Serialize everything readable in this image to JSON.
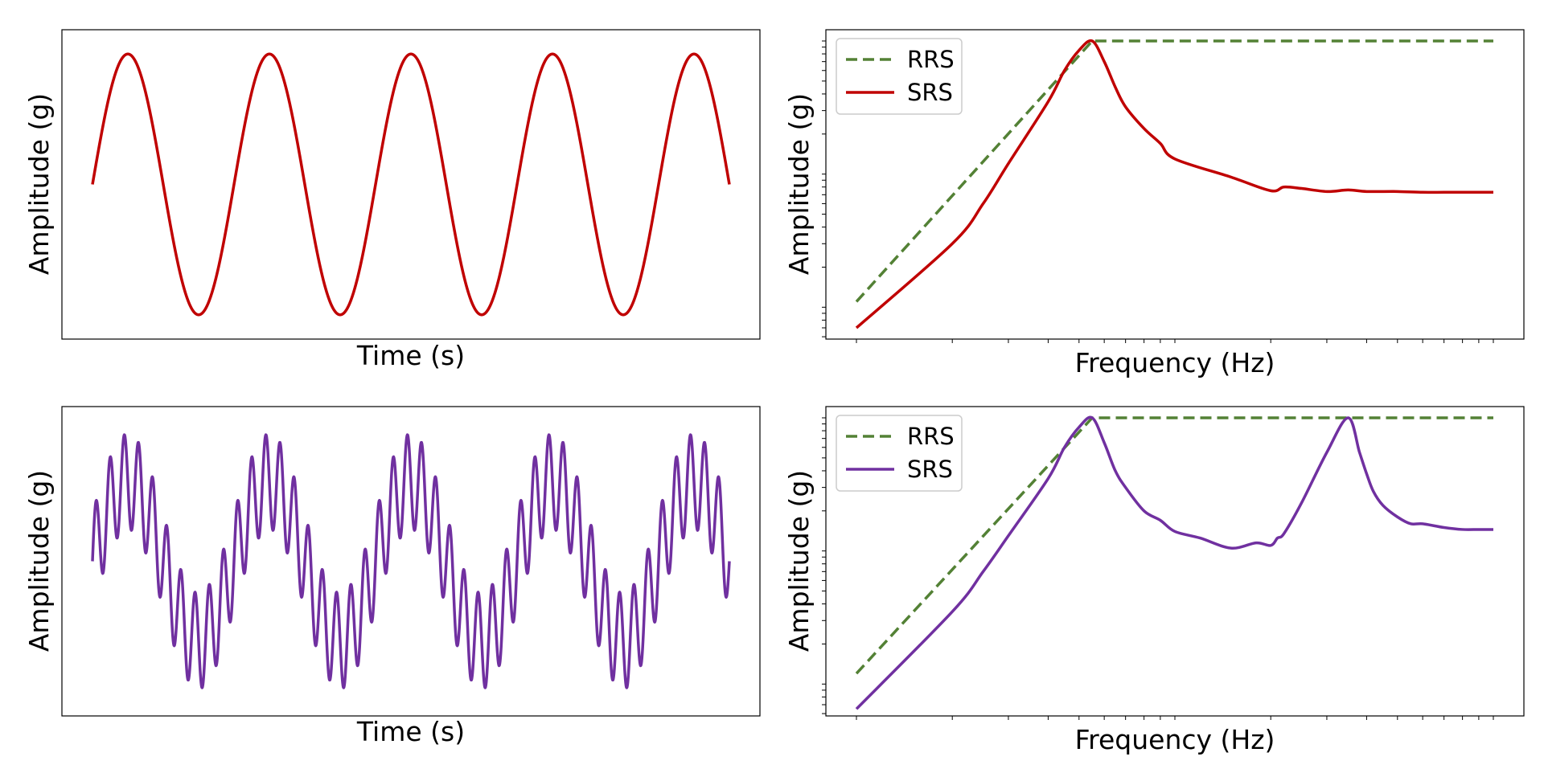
{
  "chart_data": [
    {
      "id": "time_single",
      "type": "line",
      "xlabel": "Time (s)",
      "ylabel": "Amplitude (g)",
      "grid": false,
      "xticks_shown": false,
      "yticks_shown": false,
      "xlim": [
        0,
        1
      ],
      "ylim": [
        -1.1,
        1.1
      ],
      "series": [
        {
          "color": "#c00000",
          "function": "sine",
          "cycles": 4.5,
          "amplitude": 1.0
        }
      ]
    },
    {
      "id": "srs_single",
      "type": "line",
      "xlabel": "Frequency (Hz)",
      "ylabel": "Amplitude (g)",
      "grid": false,
      "xscale": "log",
      "yscale": "log",
      "xlim": [
        0.9,
        110
      ],
      "ylim": [
        0.5,
        120
      ],
      "legend": {
        "position": "upper-left",
        "entries": [
          "RRS",
          "SRS"
        ]
      },
      "series": [
        {
          "name": "RRS",
          "color": "#538135",
          "dashed": true,
          "x": [
            1,
            5.5,
            100
          ],
          "y": [
            1.1,
            100,
            100
          ]
        },
        {
          "name": "SRS",
          "color": "#c00000",
          "dashed": false,
          "x": [
            1,
            2,
            2.5,
            3,
            4,
            4.5,
            5,
            5.5,
            6,
            6.5,
            7,
            8,
            9,
            10,
            15,
            20,
            22,
            25,
            30,
            35,
            40,
            50,
            60,
            70,
            80,
            100
          ],
          "y": [
            0.7,
            3.0,
            6.0,
            12,
            35,
            60,
            85,
            100,
            70,
            45,
            32,
            22,
            17,
            13,
            9.5,
            7.5,
            8.0,
            7.8,
            7.4,
            7.6,
            7.4,
            7.4,
            7.3,
            7.3,
            7.3,
            7.3
          ]
        }
      ]
    },
    {
      "id": "time_multi",
      "type": "line",
      "xlabel": "Time (s)",
      "ylabel": "Amplitude (g)",
      "grid": false,
      "xticks_shown": false,
      "yticks_shown": false,
      "xlim": [
        0,
        1
      ],
      "ylim": [
        -1.8,
        1.8
      ],
      "series": [
        {
          "color": "#7030a0",
          "function": "sum-of-sines",
          "cycles": [
            4.5,
            45
          ],
          "amplitudes": [
            1.0,
            0.6
          ]
        }
      ]
    },
    {
      "id": "srs_multi",
      "type": "line",
      "xlabel": "Frequency (Hz)",
      "ylabel": "Amplitude (g)",
      "grid": false,
      "xscale": "log",
      "yscale": "log",
      "xlim": [
        0.9,
        110
      ],
      "ylim": [
        0.5,
        120
      ],
      "legend": {
        "position": "upper-left",
        "entries": [
          "RRS",
          "SRS"
        ]
      },
      "series": [
        {
          "name": "RRS",
          "color": "#538135",
          "dashed": true,
          "x": [
            1,
            5.5,
            100
          ],
          "y": [
            1.2,
            100,
            100
          ]
        },
        {
          "name": "SRS",
          "color": "#7030a0",
          "dashed": false,
          "x": [
            1,
            2,
            2.5,
            3,
            4,
            4.5,
            5,
            5.5,
            6,
            6.5,
            7,
            8,
            9,
            10,
            12,
            15,
            18,
            20,
            21,
            22,
            25,
            30,
            35,
            38,
            40,
            42,
            45,
            50,
            55,
            60,
            70,
            80,
            90,
            100
          ],
          "y": [
            0.65,
            3.5,
            7.0,
            13,
            35,
            60,
            85,
            100,
            65,
            40,
            30,
            20,
            17,
            14,
            12.5,
            10.5,
            11.5,
            11,
            12.5,
            13.5,
            23,
            55,
            100,
            55,
            38,
            28,
            22,
            18,
            16,
            16,
            15,
            14.5,
            14.5,
            14.5
          ]
        }
      ]
    }
  ]
}
